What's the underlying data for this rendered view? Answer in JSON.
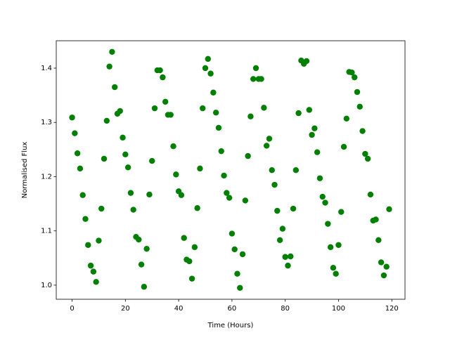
{
  "chart_data": {
    "type": "scatter",
    "xlabel": "Time (Hours)",
    "ylabel": "Normalised Flux",
    "color": "green",
    "x": [
      0,
      1,
      2,
      3,
      4,
      5,
      6,
      7,
      8,
      9,
      10,
      11,
      12,
      13,
      14,
      15,
      16,
      17,
      18,
      19,
      20,
      21,
      22,
      23,
      24,
      25,
      26,
      27,
      28,
      29,
      30,
      31,
      32,
      33,
      34,
      35,
      36,
      37,
      38,
      39,
      40,
      41,
      42,
      43,
      44,
      45,
      46,
      47,
      48,
      49,
      50,
      51,
      52,
      53,
      54,
      55,
      56,
      57,
      58,
      59,
      60,
      61,
      62,
      63,
      64,
      65,
      66,
      67,
      68,
      69,
      70,
      71,
      72,
      73,
      74,
      75,
      76,
      77,
      78,
      79,
      80,
      81,
      82,
      83,
      84,
      85,
      86,
      87,
      88,
      89,
      90,
      91,
      92,
      93,
      94,
      95,
      96,
      97,
      98,
      99,
      100,
      101,
      102,
      103,
      104,
      105,
      106,
      107,
      108,
      109,
      110,
      111,
      112,
      113,
      114,
      115,
      116,
      117,
      118,
      119
    ],
    "values": [
      1.309,
      1.28,
      1.243,
      1.215,
      1.166,
      1.122,
      1.074,
      1.036,
      1.025,
      1.006,
      1.082,
      1.141,
      1.233,
      1.303,
      1.403,
      1.43,
      1.365,
      1.316,
      1.321,
      1.272,
      1.241,
      1.217,
      1.17,
      1.139,
      1.089,
      1.084,
      1.038,
      0.997,
      1.067,
      1.167,
      1.229,
      1.326,
      1.396,
      1.396,
      1.383,
      1.338,
      1.314,
      1.314,
      1.256,
      1.204,
      1.173,
      1.166,
      1.087,
      1.047,
      1.044,
      1.012,
      1.07,
      1.142,
      1.215,
      1.326,
      1.4,
      1.417,
      1.39,
      1.355,
      1.318,
      1.29,
      1.247,
      1.202,
      1.17,
      1.161,
      1.095,
      1.066,
      1.021,
      0.995,
      1.057,
      1.156,
      1.238,
      1.311,
      1.38,
      1.4,
      1.38,
      1.38,
      1.327,
      1.257,
      1.27,
      1.212,
      1.185,
      1.137,
      1.083,
      1.104,
      1.052,
      1.036,
      1.053,
      1.141,
      1.212,
      1.317,
      1.414,
      1.408,
      1.413,
      1.323,
      1.277,
      1.289,
      1.245,
      1.197,
      1.163,
      1.152,
      1.113,
      1.07,
      1.032,
      1.021,
      1.074,
      1.135,
      1.255,
      1.307,
      1.393,
      1.392,
      1.383,
      1.356,
      1.329,
      1.284,
      1.242,
      1.233,
      1.167,
      1.119,
      1.121,
      1.083,
      1.042,
      1.018,
      1.034,
      1.14
    ],
    "xlim": [
      -5.95,
      124.95
    ],
    "ylim": [
      0.974,
      1.4505
    ],
    "xticks": [
      0,
      20,
      40,
      60,
      80,
      100,
      120
    ],
    "yticks": [
      {
        "value": 1,
        "label": "1.0"
      },
      1.1,
      1.2,
      1.3,
      1.4
    ]
  }
}
